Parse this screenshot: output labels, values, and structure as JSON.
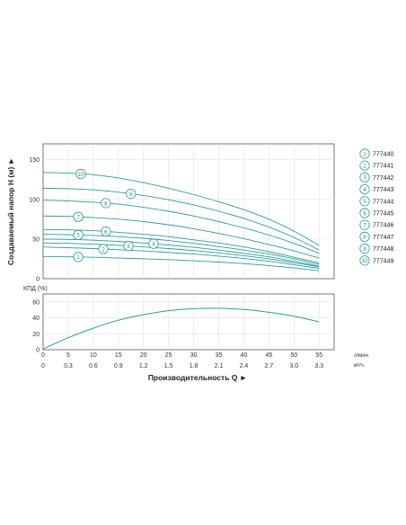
{
  "chart_data": [
    {
      "type": "line",
      "title": "",
      "ylabel": "Создаваемый напор H (м) ►",
      "xlabel": "",
      "ylim": [
        0,
        170
      ],
      "yticks": [
        0,
        50,
        100,
        150
      ],
      "grid": true,
      "legend_position": "right",
      "colors": {
        "line": "#2a9d9b",
        "grid": "#e2e2e2",
        "frame": "#555555"
      },
      "series": [
        {
          "marker": "1",
          "name": "777440",
          "x": [
            0,
            5,
            10,
            15,
            20,
            25,
            30,
            35,
            40,
            45,
            50,
            55
          ],
          "y": [
            28,
            27.5,
            27,
            26,
            25,
            24,
            22.5,
            21,
            19,
            16.5,
            13.5,
            10
          ]
        },
        {
          "marker": "2",
          "name": "777441",
          "x": [
            0,
            5,
            10,
            15,
            20,
            25,
            30,
            35,
            40,
            45,
            50,
            55
          ],
          "y": [
            40,
            39,
            38,
            36.5,
            35,
            33,
            31,
            28.5,
            25.5,
            22,
            17.5,
            13
          ]
        },
        {
          "marker": "3",
          "name": "777442",
          "x": [
            0,
            5,
            10,
            15,
            20,
            25,
            30,
            35,
            40,
            45,
            50,
            55
          ],
          "y": [
            45,
            44.5,
            43.5,
            42,
            40,
            38,
            35.5,
            32.5,
            29,
            25,
            20,
            15
          ]
        },
        {
          "marker": "4",
          "name": "777443",
          "x": [
            0,
            5,
            10,
            15,
            20,
            25,
            30,
            35,
            40,
            45,
            50,
            55
          ],
          "y": [
            50,
            49.5,
            48.5,
            47,
            45,
            42.5,
            39.5,
            36,
            32,
            27.5,
            22,
            16
          ]
        },
        {
          "marker": "5",
          "name": "777444",
          "x": [
            0,
            5,
            10,
            15,
            20,
            25,
            30,
            35,
            40,
            45,
            50,
            55
          ],
          "y": [
            56,
            55.5,
            54.5,
            53,
            51,
            48,
            44.5,
            40.5,
            36,
            31,
            25,
            18
          ]
        },
        {
          "marker": "6",
          "name": "777445",
          "x": [
            0,
            5,
            10,
            15,
            20,
            25,
            30,
            35,
            40,
            45,
            50,
            55
          ],
          "y": [
            62,
            61.5,
            60.5,
            58.5,
            56,
            53,
            49,
            45,
            40,
            34,
            27,
            20
          ]
        },
        {
          "marker": "7",
          "name": "777446",
          "x": [
            0,
            5,
            10,
            15,
            20,
            25,
            30,
            35,
            40,
            45,
            50,
            55
          ],
          "y": [
            79,
            78.5,
            77,
            75,
            72,
            68,
            63,
            57,
            50.5,
            43,
            35,
            26
          ]
        },
        {
          "marker": "8",
          "name": "777447",
          "x": [
            0,
            5,
            10,
            15,
            20,
            25,
            30,
            35,
            40,
            45,
            50,
            55
          ],
          "y": [
            99,
            98,
            96.5,
            94,
            90,
            85,
            79,
            72,
            64,
            55,
            44.5,
            32
          ]
        },
        {
          "marker": "9",
          "name": "777448",
          "x": [
            0,
            5,
            10,
            15,
            20,
            25,
            30,
            35,
            40,
            45,
            50,
            55
          ],
          "y": [
            114,
            113.5,
            112,
            109,
            105,
            99.5,
            93,
            85,
            76,
            65,
            52,
            36
          ]
        },
        {
          "marker": "10",
          "name": "777449",
          "x": [
            0,
            5,
            10,
            15,
            20,
            25,
            30,
            35,
            40,
            45,
            50,
            55
          ],
          "y": [
            134,
            133,
            131,
            127,
            121,
            114,
            106,
            97,
            87,
            75,
            60,
            42
          ]
        }
      ],
      "marker_positions": [
        {
          "marker": "1",
          "x": 7
        },
        {
          "marker": "2",
          "x": 12
        },
        {
          "marker": "3",
          "x": 17
        },
        {
          "marker": "4",
          "x": 22
        },
        {
          "marker": "5",
          "x": 7
        },
        {
          "marker": "6",
          "x": 12.5
        },
        {
          "marker": "7",
          "x": 7
        },
        {
          "marker": "8",
          "x": 12.5
        },
        {
          "marker": "9",
          "x": 17.5
        },
        {
          "marker": "10",
          "x": 7.5
        }
      ]
    },
    {
      "type": "line",
      "title": "",
      "ylabel": "КПД (%)",
      "xlabel": "Производительность Q ►",
      "ylim": [
        0,
        70
      ],
      "yticks": [
        0,
        20,
        40,
        60
      ],
      "grid": true,
      "x_lpm": {
        "unit": "л/мин",
        "ticks": [
          "0",
          "5",
          "10",
          "15",
          "20",
          "25",
          "30",
          "35",
          "40",
          "45",
          "50",
          "55"
        ],
        "values": [
          0,
          5,
          10,
          15,
          20,
          25,
          30,
          35,
          40,
          45,
          50,
          55
        ]
      },
      "x_m3h": {
        "unit": "м³/ч",
        "ticks": [
          "0",
          "0.3",
          "0.6",
          "0.9",
          "1.2",
          "1.5",
          "1.8",
          "2.1",
          "2.4",
          "2.7",
          "3.0",
          "3.3"
        ],
        "values": [
          0,
          0.3,
          0.6,
          0.9,
          1.2,
          1.5,
          1.8,
          2.1,
          2.4,
          2.7,
          3.0,
          3.3
        ]
      },
      "series": [
        {
          "x": [
            0,
            5,
            10,
            15,
            20,
            25,
            30,
            35,
            40,
            45,
            50,
            55
          ],
          "y": [
            1,
            15,
            27,
            37,
            44,
            49,
            51.5,
            52,
            50.5,
            47,
            42,
            35
          ]
        }
      ]
    }
  ]
}
